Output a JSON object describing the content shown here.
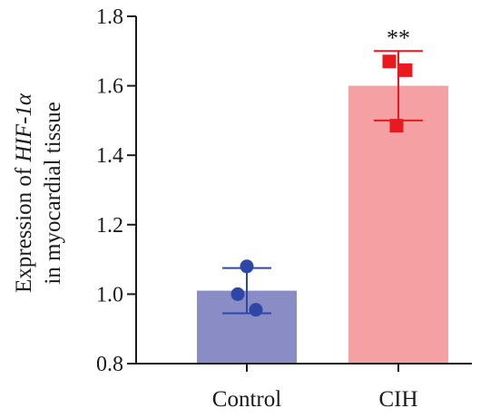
{
  "chart_data": {
    "type": "bar",
    "categories": [
      "Control",
      "CIH"
    ],
    "values": [
      1.01,
      1.6
    ],
    "error": [
      0.065,
      0.1
    ],
    "points": [
      [
        1.08,
        1.0,
        0.955
      ],
      [
        1.67,
        1.645,
        1.485
      ]
    ],
    "point_markers": [
      "circle",
      "square"
    ],
    "significance": [
      "",
      "**"
    ],
    "ylabel_line1": "Expression of HIF-1α",
    "ylabel_line1_prefix": "Expression of ",
    "ylabel_line1_italic": "HIF-1α",
    "ylabel_line2": "in myocardial tissue",
    "ylim": [
      0.8,
      1.8
    ],
    "yticks": [
      "0.8",
      "1.0",
      "1.2",
      "1.4",
      "1.6",
      "1.8"
    ],
    "colors": {
      "bars": [
        "#8a8cc5",
        "#f5a0a2"
      ],
      "points": [
        "#2e47a6",
        "#e8191f"
      ],
      "errorbars": [
        "#2e47a6",
        "#e8191f"
      ],
      "axis": "#1a1a1a"
    },
    "grid": false
  }
}
